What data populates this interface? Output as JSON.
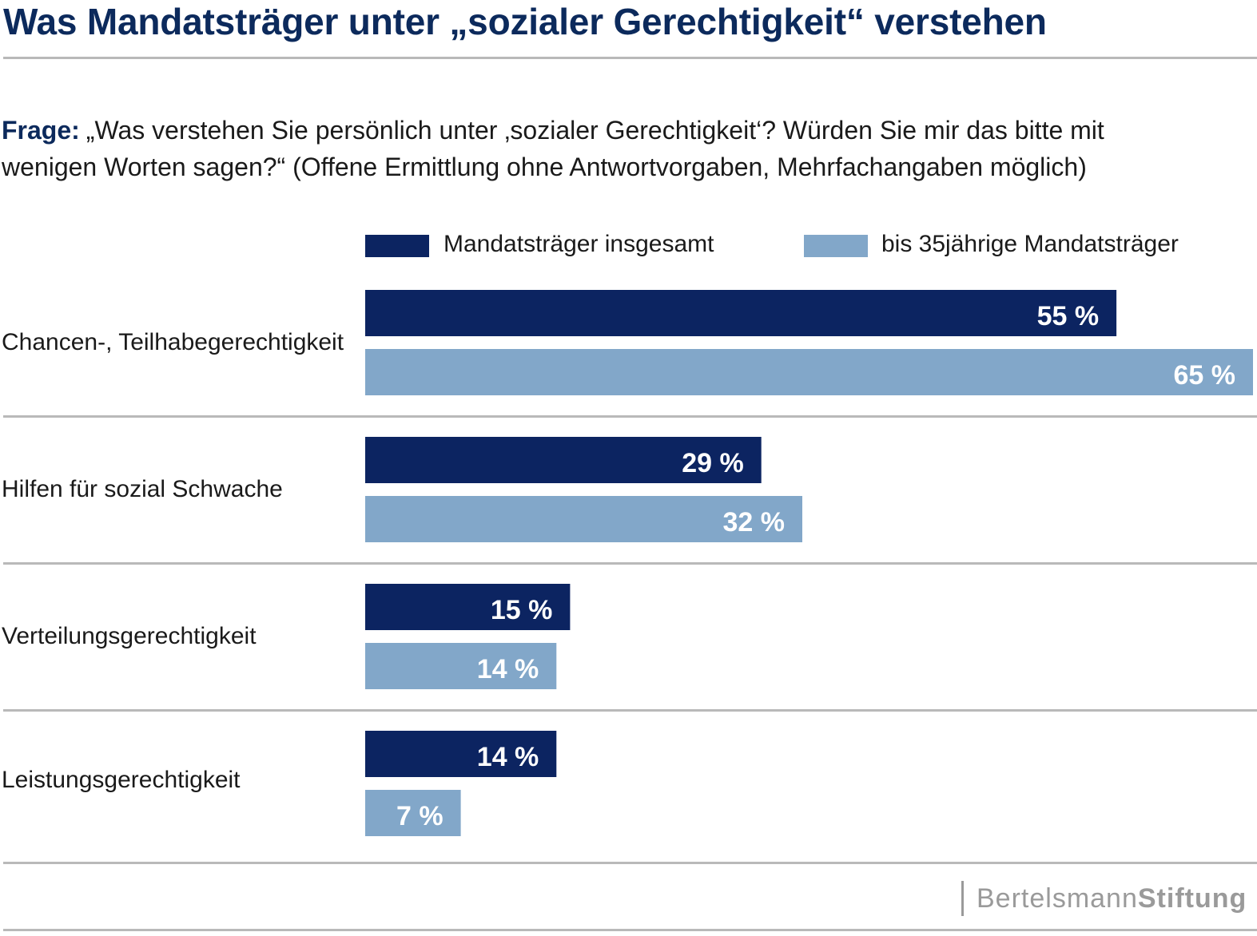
{
  "title": "Was Mandatsträger unter „sozialer Gerechtigkeit“ verstehen",
  "question": {
    "label": "Frage:",
    "text": "„Was verstehen Sie persönlich unter ‚sozialer Gerechtigkeit‘? Würden Sie mir das bitte mit wenigen Worten sagen?“ (Offene Ermittlung ohne Antwortvorgaben, Mehrfachangaben möglich)"
  },
  "colors": {
    "title": "#0c2a5c",
    "series_1": "#0c2461",
    "series_2": "#82a7c9",
    "divider": "#b9b9b9",
    "logo": "#9a9a9a"
  },
  "chart_data": {
    "type": "bar",
    "orientation": "horizontal",
    "categories": [
      "Chancen-, Teilhabegerechtigkeit",
      "Hilfen für sozial Schwache",
      "Verteilungsgerechtigkeit",
      "Leistungsgerechtigkeit"
    ],
    "series": [
      {
        "name": "Mandatsträger insgesamt",
        "values": [
          55,
          29,
          15,
          14
        ],
        "labels": [
          "55 %",
          "29 %",
          "15 %",
          "14 %"
        ]
      },
      {
        "name": "bis 35jährige Mandatsträger",
        "values": [
          65,
          32,
          14,
          7
        ],
        "labels": [
          "65 %",
          "32 %",
          "14 %",
          "7 %"
        ]
      }
    ],
    "xlim": [
      0,
      65
    ],
    "unit": "%",
    "grid": false,
    "legend": "top"
  },
  "logo": {
    "part1": "Bertelsmann",
    "part2": "Stiftung"
  }
}
